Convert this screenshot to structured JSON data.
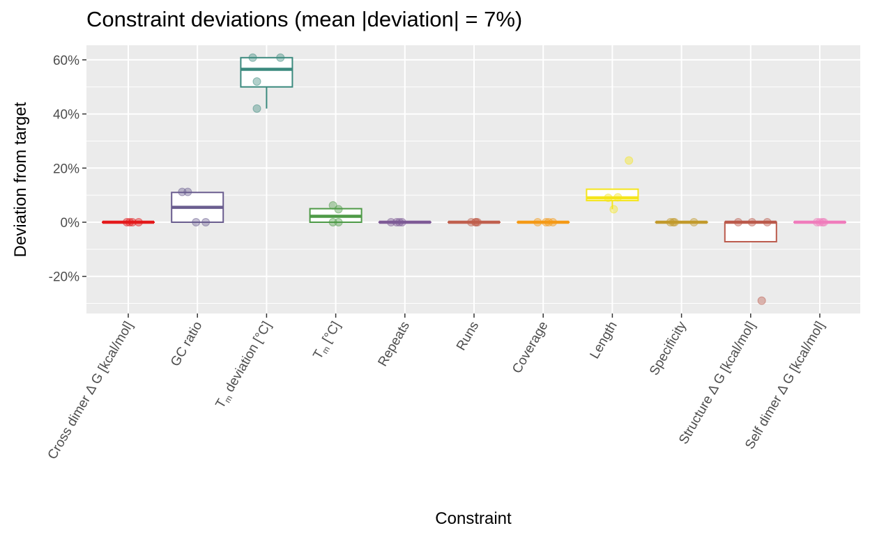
{
  "chart_data": {
    "type": "box",
    "title": "Constraint deviations (mean |deviation| = 7%)",
    "xlabel": "Constraint",
    "ylabel": "Deviation from target",
    "ylim": [
      -0.33,
      0.66
    ],
    "y_ticks": [
      -0.2,
      0,
      0.2,
      0.4,
      0.6
    ],
    "y_tick_labels": [
      "-20%",
      "0%",
      "20%",
      "40%",
      "60%"
    ],
    "grid": true,
    "panel_background": "#ebebeb",
    "categories": [
      {
        "label_parts": [
          {
            "t": "Cross dimer Δ G [kcal/mol]",
            "sub": false
          }
        ],
        "color": "#e41a1c",
        "box": {
          "q1": 0,
          "median": 0,
          "q3": 0,
          "lower": 0,
          "upper": 0
        },
        "points": [
          [
            -0.02,
            0
          ],
          [
            0.02,
            0
          ],
          [
            0.06,
            0
          ],
          [
            0.15,
            0
          ]
        ]
      },
      {
        "label_parts": [
          {
            "t": "GC ratio",
            "sub": false
          }
        ],
        "color": "#6a5d8f",
        "box": {
          "q1": 0,
          "median": 0.055,
          "q3": 0.11,
          "lower": 0,
          "upper": 0.11
        },
        "points": [
          [
            -0.22,
            0.112
          ],
          [
            -0.14,
            0.112
          ],
          [
            -0.02,
            0
          ],
          [
            0.12,
            0
          ]
        ]
      },
      {
        "label_parts": [
          {
            "t": "T",
            "sub": false
          },
          {
            "t": "m",
            "sub": true
          },
          {
            "t": " deviation [°C]",
            "sub": false
          }
        ],
        "color": "#3b8a7e",
        "box": {
          "q1": 0.5,
          "median": 0.565,
          "q3": 0.608,
          "lower": 0.42,
          "upper": 0.608
        },
        "points": [
          [
            -0.2,
            0.608
          ],
          [
            -0.14,
            0.52
          ],
          [
            -0.14,
            0.42
          ],
          [
            0.2,
            0.608
          ]
        ]
      },
      {
        "label_parts": [
          {
            "t": "T",
            "sub": false
          },
          {
            "t": "m",
            "sub": true
          },
          {
            "t": " [°C]",
            "sub": false
          }
        ],
        "color": "#4e9a47",
        "box": {
          "q1": 0,
          "median": 0.022,
          "q3": 0.05,
          "lower": 0,
          "upper": 0.05
        },
        "points": [
          [
            -0.04,
            0.062
          ],
          [
            0.04,
            0.048
          ],
          [
            -0.04,
            0
          ],
          [
            0.04,
            0
          ]
        ]
      },
      {
        "label_parts": [
          {
            "t": "Repeats",
            "sub": false
          }
        ],
        "color": "#7e5a96",
        "box": {
          "q1": 0,
          "median": 0,
          "q3": 0,
          "lower": 0,
          "upper": 0
        },
        "points": [
          [
            -0.2,
            0
          ],
          [
            -0.12,
            0
          ],
          [
            -0.04,
            0
          ],
          [
            -0.08,
            0
          ]
        ]
      },
      {
        "label_parts": [
          {
            "t": "Runs",
            "sub": false
          }
        ],
        "color": "#c0604e",
        "box": {
          "q1": 0,
          "median": 0,
          "q3": 0,
          "lower": 0,
          "upper": 0
        },
        "points": [
          [
            -0.04,
            0
          ],
          [
            0.02,
            0
          ],
          [
            0.05,
            0
          ],
          [
            0.03,
            0
          ]
        ]
      },
      {
        "label_parts": [
          {
            "t": "Coverage",
            "sub": false
          }
        ],
        "color": "#f59a16",
        "box": {
          "q1": 0,
          "median": 0,
          "q3": 0,
          "lower": 0,
          "upper": 0
        },
        "points": [
          [
            -0.08,
            0
          ],
          [
            0.04,
            0
          ],
          [
            0.08,
            0
          ],
          [
            0.14,
            0
          ]
        ]
      },
      {
        "label_parts": [
          {
            "t": "Length",
            "sub": false
          }
        ],
        "color": "#f5e51c",
        "box": {
          "q1": 0.08,
          "median": 0.09,
          "q3": 0.122,
          "lower": 0.048,
          "upper": 0.122
        },
        "points": [
          [
            0.24,
            0.228
          ],
          [
            0.08,
            0.092
          ],
          [
            -0.06,
            0.09
          ],
          [
            0.02,
            0.048
          ]
        ]
      },
      {
        "label_parts": [
          {
            "t": "Specificity",
            "sub": false
          }
        ],
        "color": "#c29a2c",
        "box": {
          "q1": 0,
          "median": 0,
          "q3": 0,
          "lower": 0,
          "upper": 0
        },
        "points": [
          [
            -0.16,
            0
          ],
          [
            -0.12,
            0
          ],
          [
            -0.1,
            0
          ],
          [
            0.18,
            0
          ]
        ]
      },
      {
        "label_parts": [
          {
            "t": "Structure Δ G [kcal/mol]",
            "sub": false
          }
        ],
        "color": "#bb5a4c",
        "box": {
          "q1": -0.072,
          "median": 0,
          "q3": 0,
          "lower": -0.072,
          "upper": 0
        },
        "points": [
          [
            -0.18,
            0
          ],
          [
            0.02,
            0
          ],
          [
            0.24,
            0
          ],
          [
            0.16,
            -0.29
          ]
        ]
      },
      {
        "label_parts": [
          {
            "t": "Self dimer Δ G [kcal/mol]",
            "sub": false
          }
        ],
        "color": "#f07cbc",
        "box": {
          "q1": 0,
          "median": 0,
          "q3": 0,
          "lower": 0,
          "upper": 0
        },
        "points": [
          [
            -0.04,
            0
          ],
          [
            0,
            0
          ],
          [
            0.04,
            0
          ],
          [
            0.06,
            0
          ]
        ]
      }
    ]
  }
}
